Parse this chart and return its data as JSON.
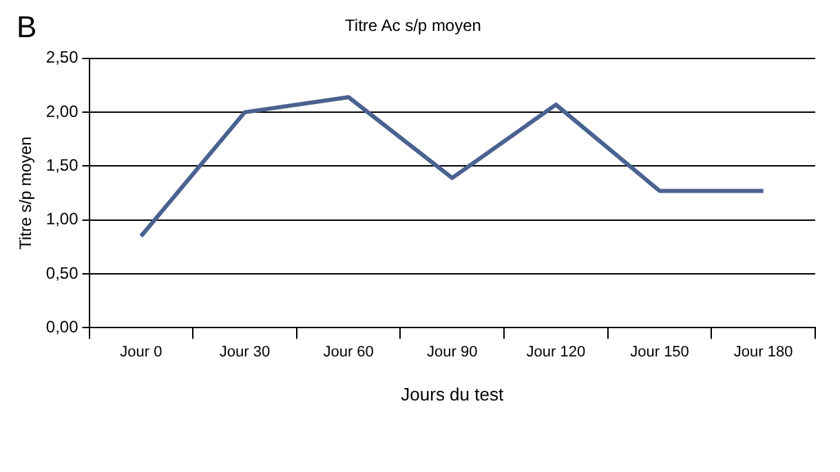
{
  "chart_data": {
    "type": "line",
    "title": "Titre Ac s/p moyen",
    "xlabel": "Jours du test",
    "ylabel": "Titre s/p moyen",
    "annotations": [
      "B"
    ],
    "categories": [
      "Jour 0",
      "Jour 30",
      "Jour 60",
      "Jour 90",
      "Jour 120",
      "Jour 150",
      "Jour 180"
    ],
    "series": [
      {
        "color": "#4a6290",
        "values": [
          0.85,
          2.0,
          2.14,
          1.39,
          2.07,
          1.27,
          1.27
        ]
      }
    ],
    "ylim": [
      0,
      2.5
    ],
    "yticks": [
      {
        "value": 0,
        "label": "0,00"
      },
      {
        "value": 0.5,
        "label": "0,50"
      },
      {
        "value": 1,
        "label": "1,00"
      },
      {
        "value": 1.5,
        "label": "1,50"
      },
      {
        "value": 2,
        "label": "2,00"
      },
      {
        "value": 2.5,
        "label": "2,50"
      }
    ],
    "grid": "y",
    "legend": false,
    "marker": "none",
    "line_style": "solid"
  }
}
